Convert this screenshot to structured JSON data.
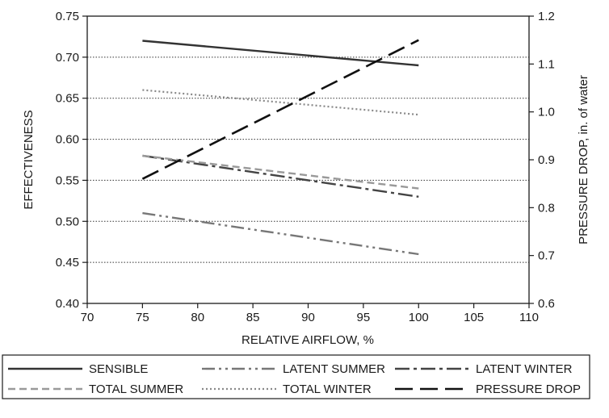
{
  "chart_data": {
    "type": "line",
    "xlabel": "RELATIVE AIRFLOW, %",
    "ylabel": "EFFECTIVENESS",
    "y2label": "PRESSURE DROP, in. of water",
    "xlim": [
      70,
      110
    ],
    "ylim": [
      0.4,
      0.75
    ],
    "y2lim": [
      0.6,
      1.2
    ],
    "x_ticks": [
      "70",
      "75",
      "80",
      "85",
      "90",
      "95",
      "100",
      "105",
      "110"
    ],
    "y_ticks": [
      "0.40",
      "0.45",
      "0.50",
      "0.55",
      "0.60",
      "0.65",
      "0.70",
      "0.75"
    ],
    "y2_ticks": [
      "0.6",
      "0.7",
      "0.8",
      "0.9",
      "1.0",
      "1.1",
      "1.2"
    ],
    "grid": "horizontal dotted",
    "legend_position": "bottom",
    "series": [
      {
        "name": "SENSIBLE",
        "axis": "left",
        "style": "solid",
        "color": "#333333",
        "x": [
          75,
          100
        ],
        "y": [
          0.72,
          0.69
        ]
      },
      {
        "name": "LATENT SUMMER",
        "axis": "left",
        "style": "dash-dot-dot",
        "color": "#777777",
        "x": [
          75,
          100
        ],
        "y": [
          0.51,
          0.46
        ]
      },
      {
        "name": "LATENT WINTER",
        "axis": "left",
        "style": "dash-dot",
        "color": "#444444",
        "x": [
          75,
          100
        ],
        "y": [
          0.58,
          0.53
        ]
      },
      {
        "name": "TOTAL SUMMER",
        "axis": "left",
        "style": "dashed",
        "color": "#999999",
        "x": [
          75,
          100
        ],
        "y": [
          0.58,
          0.54
        ]
      },
      {
        "name": "TOTAL WINTER",
        "axis": "left",
        "style": "dotted",
        "color": "#888888",
        "x": [
          75,
          100
        ],
        "y": [
          0.66,
          0.63
        ]
      },
      {
        "name": "PRESSURE DROP",
        "axis": "right",
        "style": "long-dash",
        "color": "#111111",
        "x": [
          75,
          100
        ],
        "y": [
          0.86,
          1.15
        ]
      }
    ]
  }
}
